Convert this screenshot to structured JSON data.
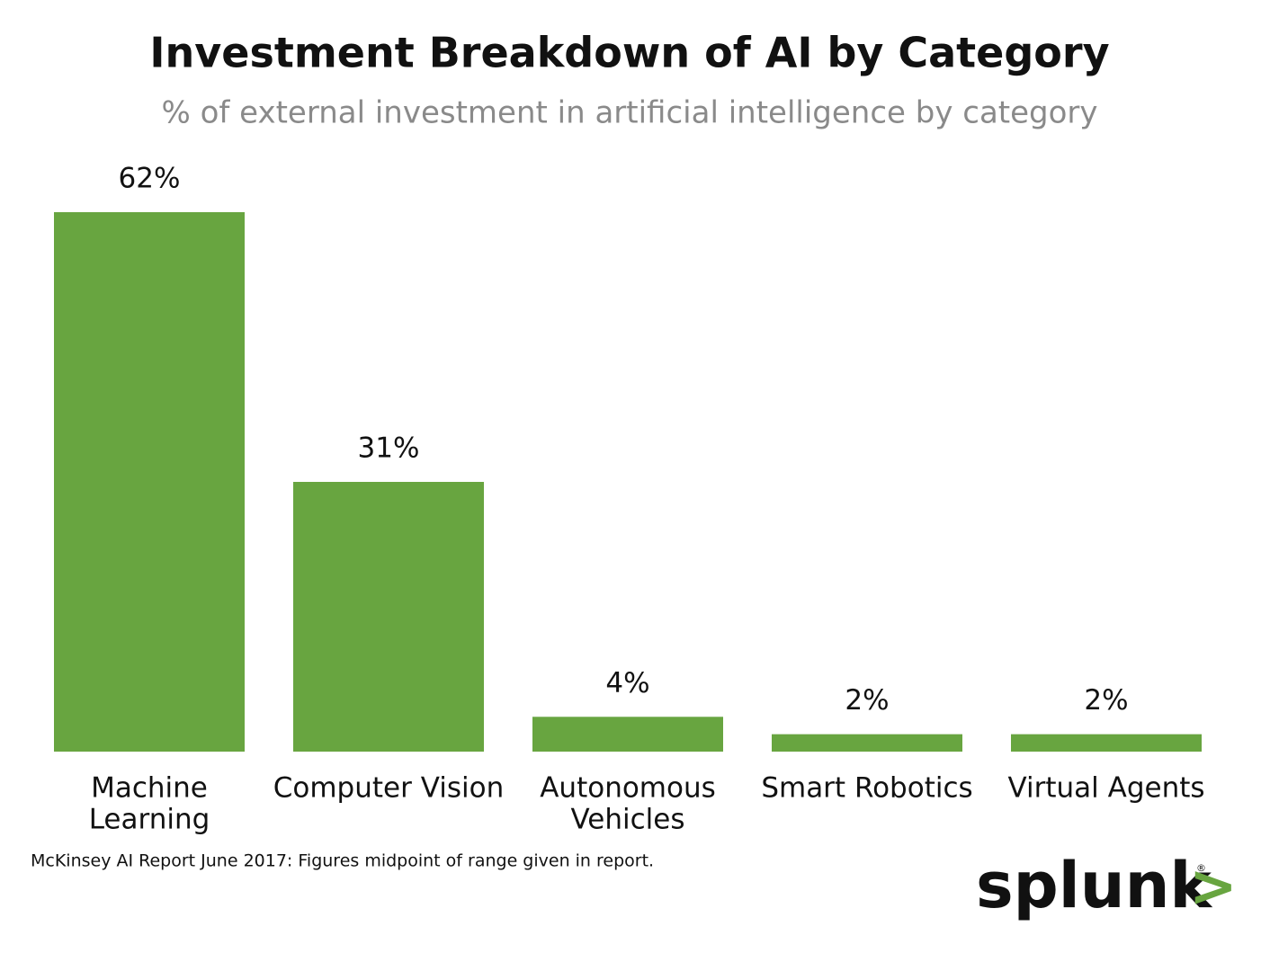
{
  "chart_data": {
    "type": "bar",
    "title": "Investment Breakdown of AI by Category",
    "subtitle": "% of external investment in artificial intelligence by category",
    "categories": [
      [
        "Machine",
        "Learning"
      ],
      [
        "Computer Vision"
      ],
      [
        "Autonomous",
        "Vehicles"
      ],
      [
        "Smart Robotics"
      ],
      [
        "Virtual Agents"
      ]
    ],
    "values": [
      62,
      31,
      4,
      2,
      2
    ],
    "value_labels": [
      "62%",
      "31%",
      "4%",
      "2%",
      "2%"
    ],
    "color": "#68a540",
    "source": "McKinsey AI Report June 2017: Figures midpoint of range given in report.",
    "logo": {
      "word": "splunk",
      "chevron": ">",
      "mark": "®"
    }
  }
}
